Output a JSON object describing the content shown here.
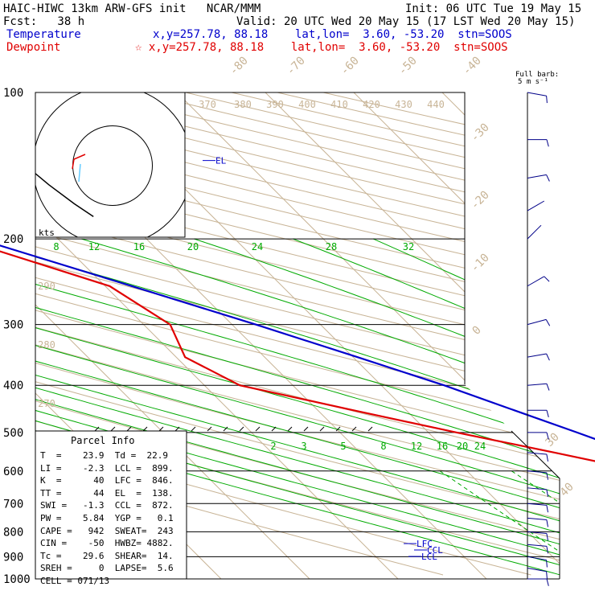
{
  "header": {
    "title": "HAIC-HIWC 13km ARW-GFS init   NCAR/MMM",
    "init": "Init: 06 UTC Tue 19 May 15",
    "fcst": "Fcst:   38 h",
    "valid": "Valid: 20 UTC Wed 20 May 15 (17 LST Wed 20 May 15)",
    "temp_label": "Temperature",
    "temp_loc": "x,y=257.78, 88.18    lat,lon=  3.60, -53.20  stn=SOOS",
    "dew_label": "Dewpoint",
    "dew_loc": "☆ x,y=257.78, 88.18    lat,lon=  3.60, -53.20  stn=SOOS"
  },
  "colors": {
    "temperature": "#0000cc",
    "dewpoint": "#e00000",
    "isotherm": "#c8b496",
    "dry_adiabat": "#c8b496",
    "moist_adiabat": "#00aa00",
    "mixing_ratio": "#00aa00"
  },
  "barb_label": {
    "line1": "Full barb:",
    "line2": "5 m s⁻¹"
  },
  "hodograph": {
    "unit_label": "kts",
    "rings": [
      5,
      10,
      15
    ]
  },
  "levels": {
    "top_label": "EL",
    "lfc_label": "LFC",
    "ccl_label": "CCL",
    "lcl_label": "LCL"
  },
  "parcel": {
    "title": "Parcel Info",
    "rows": [
      "T  =    23.9  Td =  22.9",
      "LI =    -2.3  LCL =  899.",
      "K  =      40  LFC =  846.",
      "TT =      44  EL  =  138.",
      "SWI =   -1.3  CCL =  872.",
      "PW =    5.84  YGP =   0.1",
      "CAPE =   942  SWEAT=  243",
      "CIN =    -50  HWBZ= 4882.",
      "Tc =    29.6  SHEAR=  14.",
      "SREH =     0  LAPSE=  5.6",
      "CELL = 071/13"
    ]
  },
  "chart_data": {
    "type": "line",
    "title": "",
    "y_axis": {
      "scale": "log-pressure",
      "ticks": [
        "100",
        "200",
        "300",
        "400",
        "500",
        "600",
        "700",
        "800",
        "900",
        "1000"
      ]
    },
    "isotherm_labels": [
      "-80",
      "-70",
      "-60",
      "-50",
      "-40",
      "-30",
      "-20",
      "-10",
      "0",
      "30",
      "40"
    ],
    "theta_labels_top": [
      "370",
      "380",
      "390",
      "400",
      "410",
      "420",
      "430",
      "440"
    ],
    "theta_labels_side": [
      "290",
      "280",
      "270"
    ],
    "moist_labels": [
      "8",
      "12",
      "16",
      "20",
      "24",
      "28",
      "32"
    ],
    "mixing_labels": [
      "2",
      "3",
      "5",
      "8",
      "12",
      "16",
      "20",
      "24"
    ],
    "series": [
      {
        "name": "Temperature",
        "points": [
          [
            1000,
            25.0
          ],
          [
            975,
            25.3
          ],
          [
            950,
            23.9
          ],
          [
            925,
            22.4
          ],
          [
            900,
            20.8
          ],
          [
            875,
            19.3
          ],
          [
            850,
            17.8
          ],
          [
            800,
            16.0
          ],
          [
            750,
            13.5
          ],
          [
            700,
            10.6
          ],
          [
            650,
            7.5
          ],
          [
            600,
            4.6
          ],
          [
            550,
            0.8
          ],
          [
            500,
            -3.2
          ],
          [
            450,
            -7.8
          ],
          [
            400,
            -12.9
          ],
          [
            350,
            -19.5
          ],
          [
            300,
            -27.3
          ],
          [
            250,
            -37.0
          ],
          [
            200,
            -49.0
          ],
          [
            175,
            -56.5
          ],
          [
            150,
            -66.0
          ],
          [
            125,
            -75.5
          ],
          [
            100,
            -83.0
          ]
        ]
      },
      {
        "name": "Dewpoint",
        "points": [
          [
            1000,
            23.4
          ],
          [
            975,
            22.8
          ],
          [
            950,
            22.3
          ],
          [
            925,
            21.2
          ],
          [
            900,
            19.8
          ],
          [
            875,
            18.6
          ],
          [
            850,
            17.0
          ],
          [
            800,
            15.6
          ],
          [
            750,
            13.1
          ],
          [
            700,
            10.1
          ],
          [
            650,
            6.6
          ],
          [
            600,
            -0.2
          ],
          [
            550,
            -8.0
          ],
          [
            500,
            -16.8
          ],
          [
            450,
            -26.0
          ],
          [
            400,
            -36.0
          ],
          [
            350,
            -39.0
          ],
          [
            300,
            -37.0
          ],
          [
            250,
            -39.5
          ],
          [
            200,
            -51.0
          ],
          [
            175,
            -59.5
          ],
          [
            150,
            -77.5
          ],
          [
            125,
            -82.0
          ],
          [
            100,
            -83.0
          ]
        ]
      }
    ],
    "hodograph_points": [
      [
        -3,
        8
      ],
      [
        -6,
        6
      ],
      [
        -10,
        3
      ],
      [
        -16,
        -2
      ],
      [
        -20,
        -5
      ],
      [
        -24,
        -6
      ],
      [
        -27,
        -7
      ]
    ],
    "wind_barbs": [
      {
        "p": 1000,
        "dir": 90,
        "spd": 9
      },
      {
        "p": 950,
        "dir": 100,
        "spd": 9
      },
      {
        "p": 900,
        "dir": 100,
        "spd": 8
      },
      {
        "p": 850,
        "dir": 95,
        "spd": 8
      },
      {
        "p": 800,
        "dir": 95,
        "spd": 8
      },
      {
        "p": 750,
        "dir": 95,
        "spd": 8
      },
      {
        "p": 700,
        "dir": 95,
        "spd": 8
      },
      {
        "p": 650,
        "dir": 95,
        "spd": 8
      },
      {
        "p": 600,
        "dir": 95,
        "spd": 8
      },
      {
        "p": 550,
        "dir": 95,
        "spd": 8
      },
      {
        "p": 500,
        "dir": 90,
        "spd": 8
      },
      {
        "p": 450,
        "dir": 90,
        "spd": 8
      },
      {
        "p": 400,
        "dir": 85,
        "spd": 8
      },
      {
        "p": 350,
        "dir": 80,
        "spd": 7
      },
      {
        "p": 300,
        "dir": 75,
        "spd": 6
      },
      {
        "p": 250,
        "dir": 60,
        "spd": 5
      },
      {
        "p": 200,
        "dir": 45,
        "spd": 3
      },
      {
        "p": 175,
        "dir": 60,
        "spd": 3
      },
      {
        "p": 150,
        "dir": 80,
        "spd": 6
      },
      {
        "p": 125,
        "dir": 90,
        "spd": 7
      },
      {
        "p": 100,
        "dir": 100,
        "spd": 8
      }
    ]
  }
}
